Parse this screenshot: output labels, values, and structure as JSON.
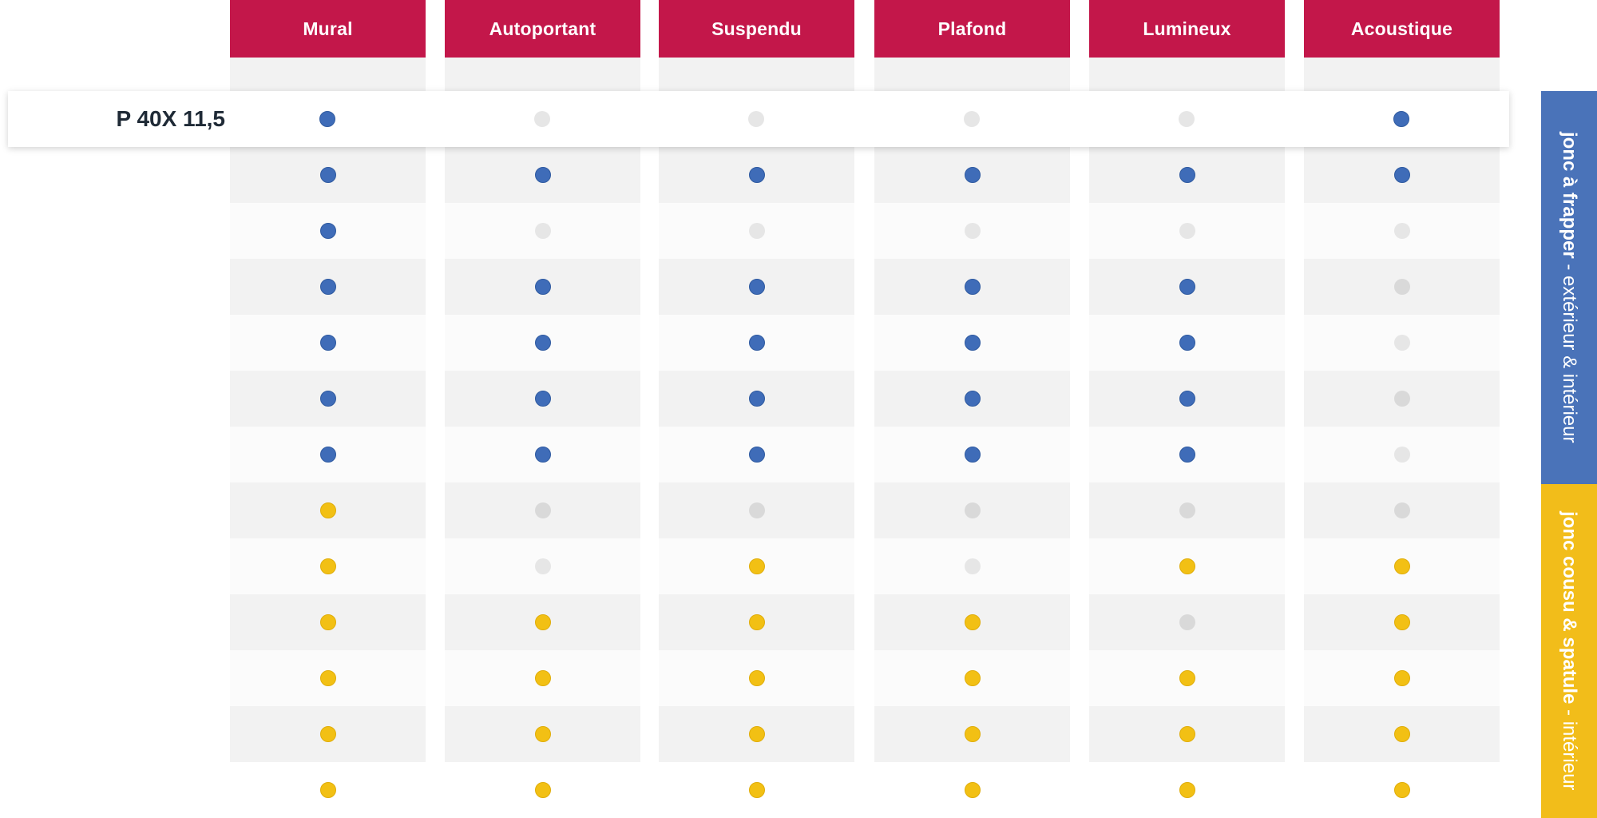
{
  "columns": [
    "Mural",
    "Autoportant",
    "Suspendu",
    "Plafond",
    "Lumineux",
    "Acoustique"
  ],
  "highlighted_row": {
    "label": "P 40X 11,5",
    "values": [
      "blue",
      "grey-l",
      "grey-l",
      "grey-l",
      "grey-l",
      "blue"
    ]
  },
  "rows": [
    [
      "blue",
      "blue",
      "blue",
      "blue",
      "blue",
      "blue"
    ],
    [
      "blue",
      "grey-l",
      "grey-l",
      "grey-l",
      "grey-l",
      "grey-l"
    ],
    [
      "blue",
      "blue",
      "blue",
      "blue",
      "blue",
      "grey-d"
    ],
    [
      "blue",
      "blue",
      "blue",
      "blue",
      "blue",
      "grey-l"
    ],
    [
      "blue",
      "blue",
      "blue",
      "blue",
      "blue",
      "grey-d"
    ],
    [
      "blue",
      "blue",
      "blue",
      "blue",
      "blue",
      "grey-l"
    ],
    [
      "yellow",
      "grey-d",
      "grey-d",
      "grey-d",
      "grey-d",
      "grey-d"
    ],
    [
      "yellow",
      "grey-l",
      "yellow",
      "grey-l",
      "yellow",
      "yellow"
    ],
    [
      "yellow",
      "yellow",
      "yellow",
      "yellow",
      "grey-d",
      "yellow"
    ],
    [
      "yellow",
      "yellow",
      "yellow",
      "yellow",
      "yellow",
      "yellow"
    ],
    [
      "yellow",
      "yellow",
      "yellow",
      "yellow",
      "yellow",
      "yellow"
    ],
    [
      "yellow",
      "yellow",
      "yellow",
      "yellow",
      "yellow",
      "yellow"
    ]
  ],
  "side_bands": [
    {
      "bold": "jonc à frapper",
      "sep": " - ",
      "rest": "extérieur & intérieur",
      "color": "#4a73b9"
    },
    {
      "bold": "jonc cousu & spatule",
      "sep": " - ",
      "rest": "intérieur",
      "color": "#f2bd1a"
    }
  ],
  "colors": {
    "header": "#c3174a",
    "blue_dot": "#3f6cb8",
    "yellow_dot": "#f2c014",
    "grey_dot": "#e6e6e6"
  }
}
